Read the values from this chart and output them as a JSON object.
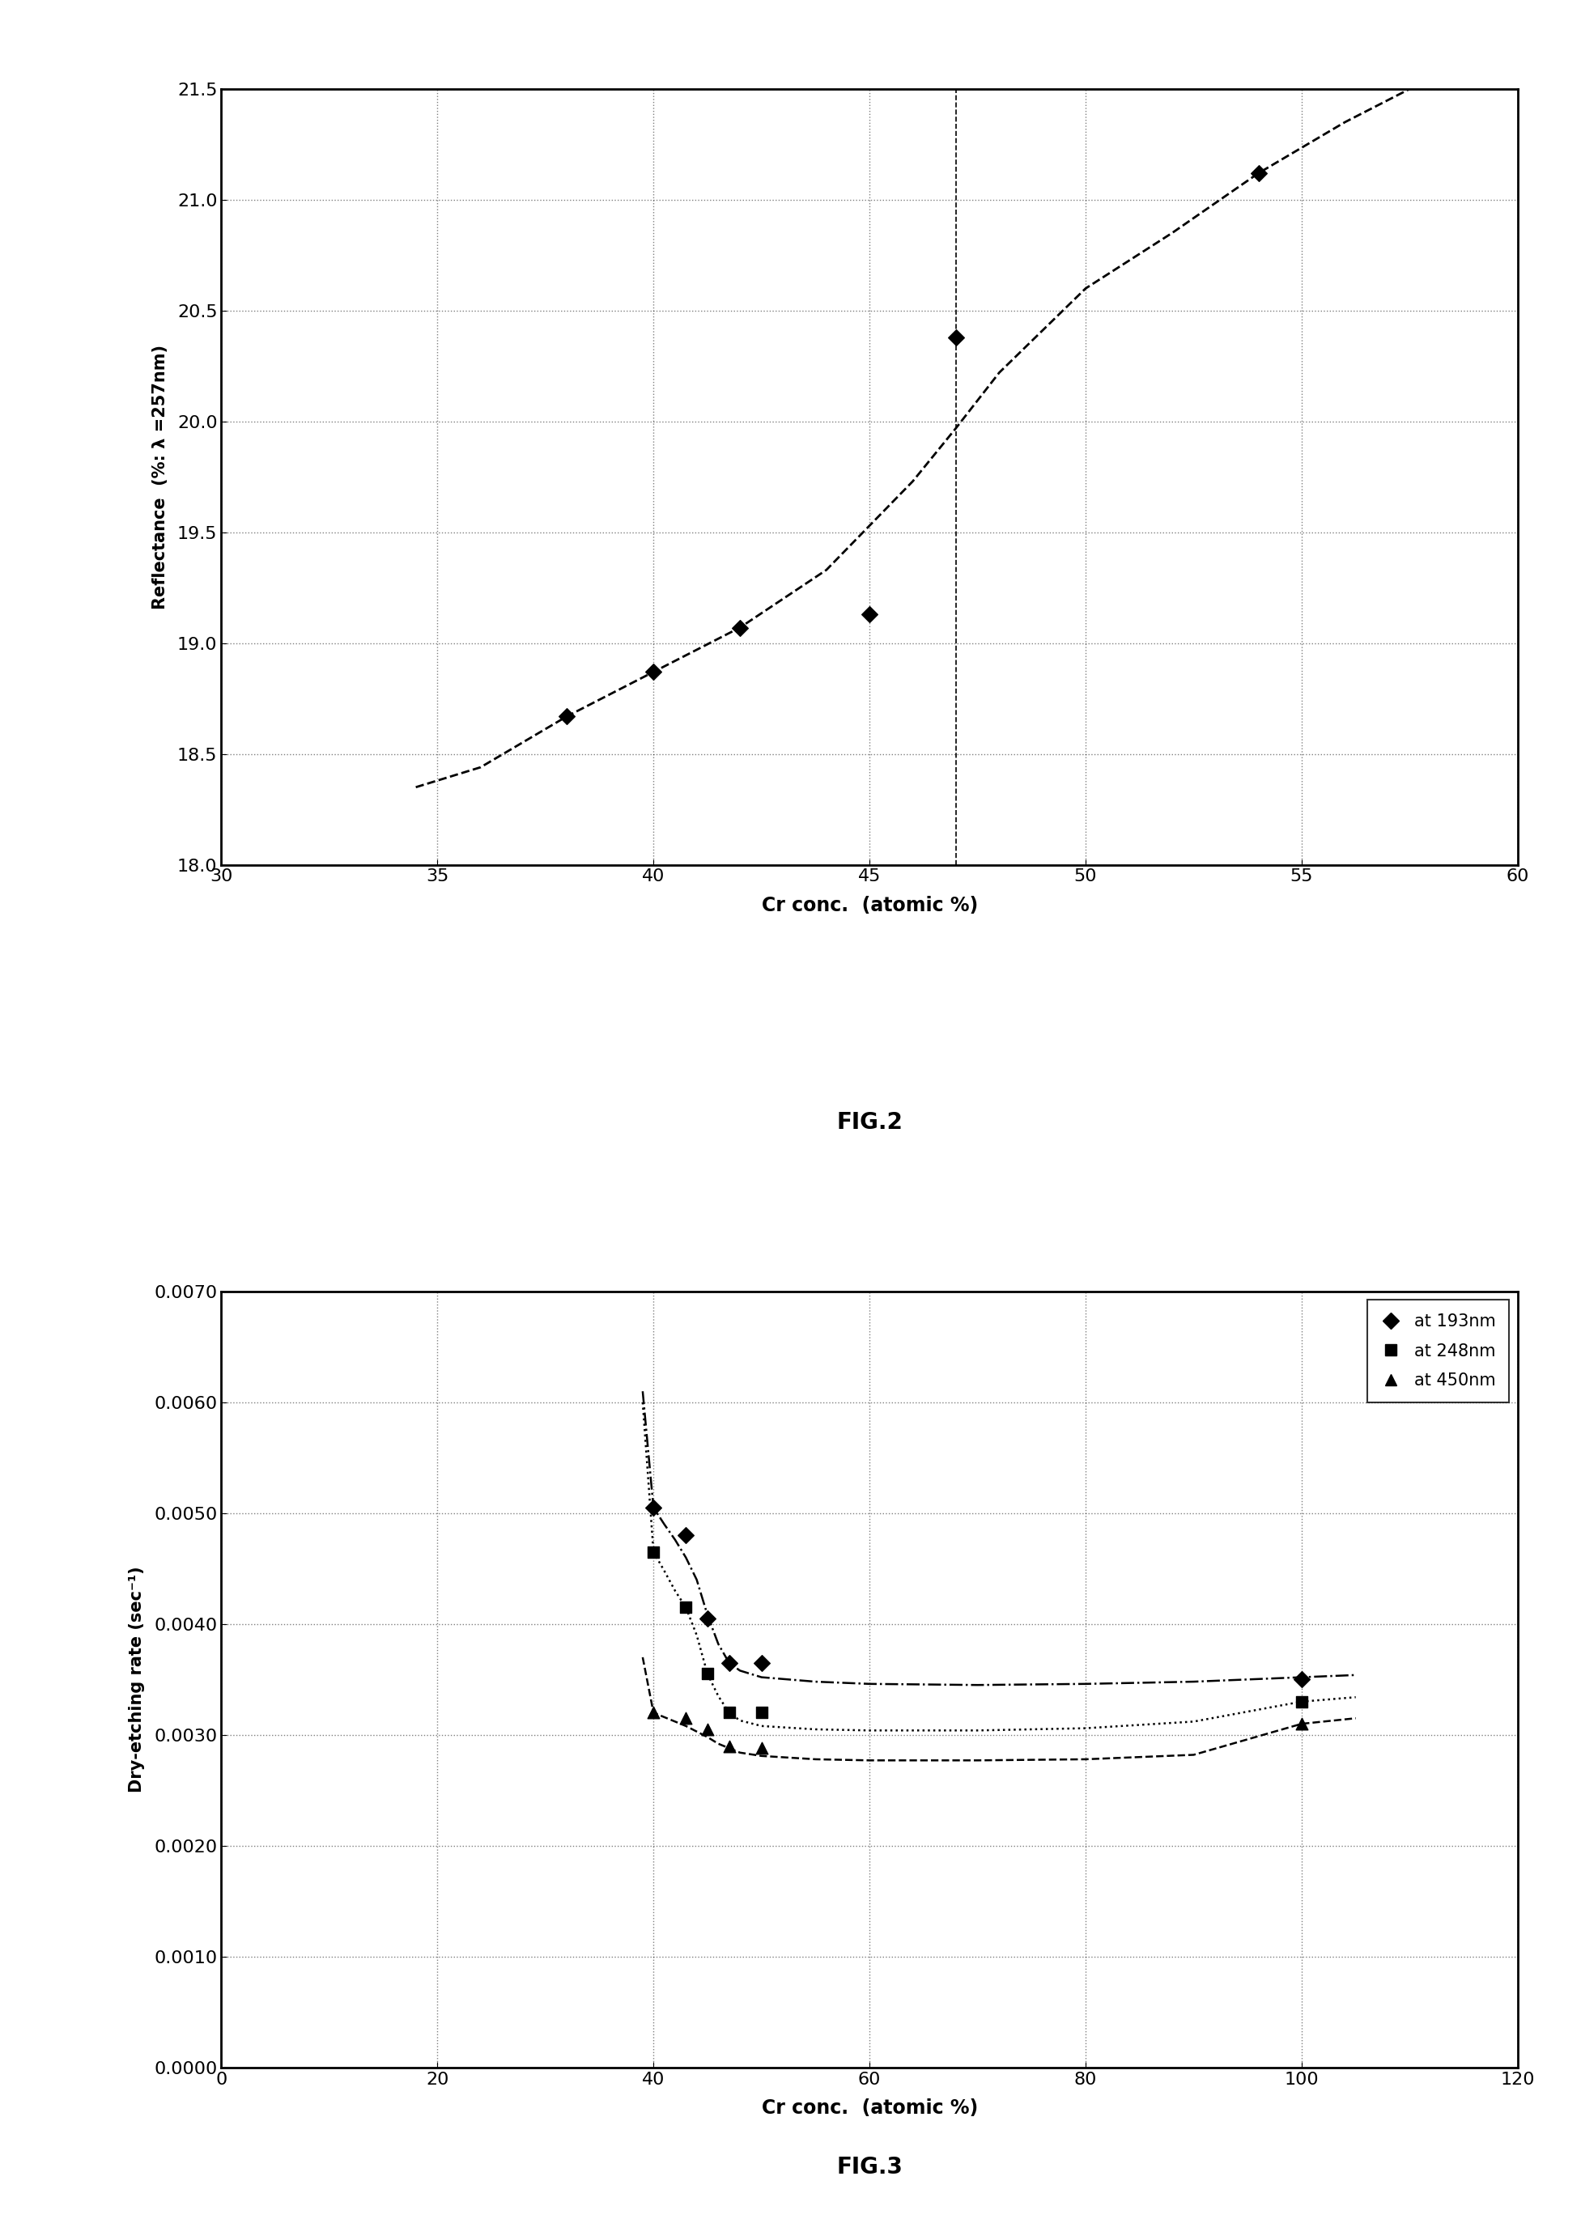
{
  "fig2": {
    "title": "FIG.2",
    "xlabel": "Cr conc.  (atomic %)",
    "ylabel": "Reflectance  (%: λ =257nm)",
    "xlim": [
      30,
      60
    ],
    "ylim": [
      18.0,
      21.5
    ],
    "xticks": [
      30,
      35,
      40,
      45,
      50,
      55,
      60
    ],
    "yticks": [
      18.0,
      18.5,
      19.0,
      19.5,
      20.0,
      20.5,
      21.0,
      21.5
    ],
    "data_x": [
      38,
      40,
      42,
      45,
      47,
      54
    ],
    "data_y": [
      18.67,
      18.87,
      19.07,
      19.13,
      20.38,
      21.12
    ],
    "curve_x": [
      34.5,
      36,
      38,
      40,
      42,
      44,
      46,
      47,
      48,
      50,
      52,
      54,
      56,
      58
    ],
    "curve_y": [
      18.35,
      18.44,
      18.67,
      18.87,
      19.07,
      19.33,
      19.73,
      19.97,
      20.22,
      20.6,
      20.85,
      21.12,
      21.35,
      21.55
    ],
    "vline_x": 47,
    "marker_color": "#000000",
    "line_color": "#000000",
    "background_color": "#ffffff"
  },
  "fig3": {
    "title": "FIG.3",
    "xlabel": "Cr conc.  (atomic %)",
    "ylabel": "Dry-etching rate (sec⁻¹)",
    "xlim": [
      0,
      120
    ],
    "ylim": [
      0.0,
      0.007
    ],
    "xticks": [
      0,
      20,
      40,
      60,
      80,
      100,
      120
    ],
    "yticks": [
      0.0,
      0.001,
      0.002,
      0.003,
      0.004,
      0.005,
      0.006,
      0.007
    ],
    "series": [
      {
        "label": "at 193nm",
        "marker": "D",
        "data_x": [
          40,
          43,
          45,
          47,
          50,
          100
        ],
        "data_y": [
          0.00505,
          0.0048,
          0.00405,
          0.00365,
          0.00365,
          0.0035
        ],
        "curve_x": [
          39,
          40,
          41,
          42,
          43,
          44,
          45,
          46,
          47,
          48,
          50,
          55,
          60,
          70,
          80,
          90,
          100,
          105
        ],
        "curve_y": [
          0.0061,
          0.00505,
          0.0049,
          0.00476,
          0.0046,
          0.0044,
          0.00408,
          0.00382,
          0.00365,
          0.00358,
          0.00352,
          0.00348,
          0.00346,
          0.00345,
          0.00346,
          0.00348,
          0.00352,
          0.00354
        ],
        "line_style": "-."
      },
      {
        "label": "at 248nm",
        "marker": "s",
        "data_x": [
          40,
          43,
          45,
          47,
          50,
          100
        ],
        "data_y": [
          0.00465,
          0.00415,
          0.00355,
          0.0032,
          0.0032,
          0.0033
        ],
        "curve_x": [
          39,
          40,
          41,
          42,
          43,
          44,
          45,
          46,
          47,
          48,
          50,
          55,
          60,
          70,
          80,
          90,
          100,
          105
        ],
        "curve_y": [
          0.006,
          0.00465,
          0.00448,
          0.0043,
          0.00415,
          0.0039,
          0.00355,
          0.00335,
          0.0032,
          0.00313,
          0.00308,
          0.00305,
          0.00304,
          0.00304,
          0.00306,
          0.00312,
          0.0033,
          0.00334
        ],
        "line_style": ":"
      },
      {
        "label": "at 450nm",
        "marker": "^",
        "data_x": [
          40,
          43,
          45,
          47,
          50,
          100
        ],
        "data_y": [
          0.0032,
          0.00315,
          0.00305,
          0.0029,
          0.00288,
          0.0031
        ],
        "curve_x": [
          39,
          40,
          41,
          42,
          43,
          44,
          45,
          46,
          47,
          48,
          50,
          55,
          60,
          70,
          80,
          90,
          100,
          105
        ],
        "curve_y": [
          0.0037,
          0.0032,
          0.00316,
          0.00312,
          0.00308,
          0.00303,
          0.00298,
          0.00292,
          0.00288,
          0.00284,
          0.00281,
          0.00278,
          0.00277,
          0.00277,
          0.00278,
          0.00282,
          0.0031,
          0.00315
        ],
        "line_style": "--"
      }
    ],
    "extra_193nm_x": [
      39
    ],
    "extra_193nm_y": [
      0.0061
    ],
    "marker_color": "#000000",
    "background_color": "#ffffff"
  }
}
